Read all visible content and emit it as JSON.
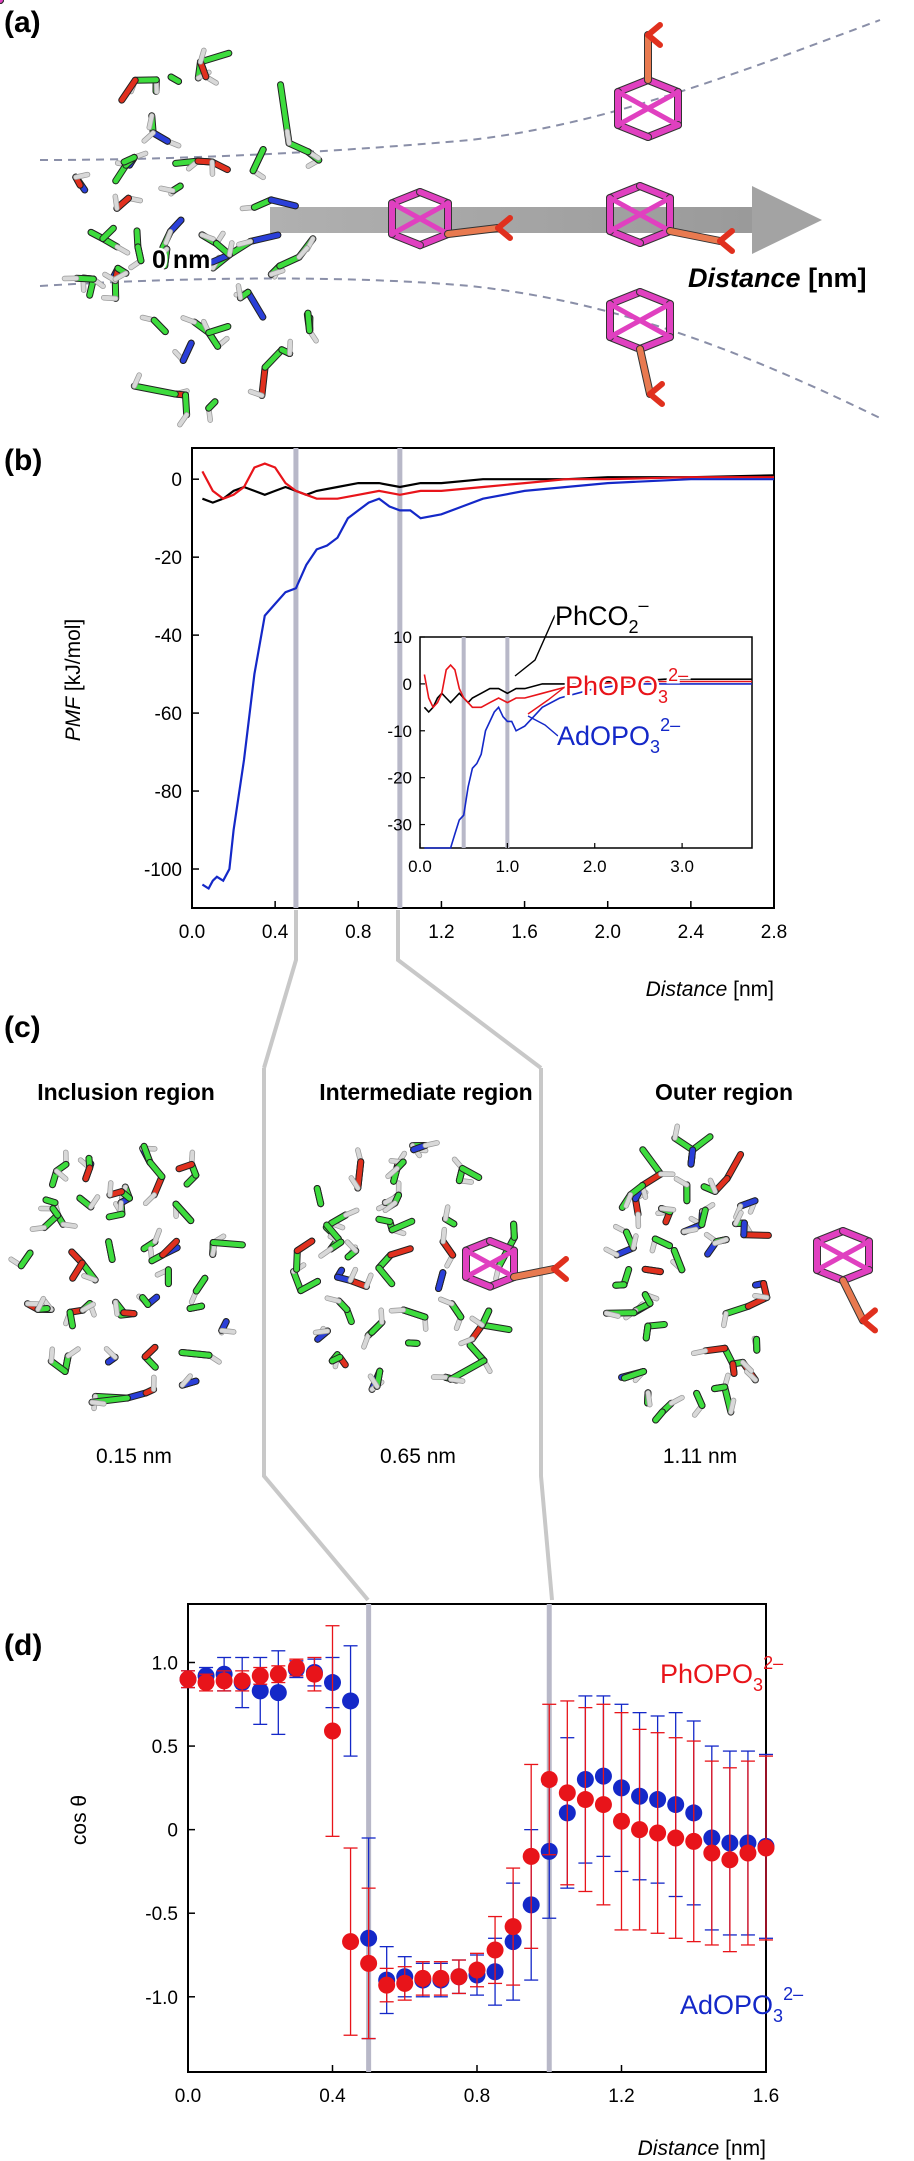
{
  "panels": {
    "a": "(a)",
    "b": "(b)",
    "c": "(c)",
    "d": "(d)"
  },
  "panel_a": {
    "origin_label": "0 nm",
    "axis_label_italic": "Distance",
    "axis_label_unit": " [nm]"
  },
  "panel_c": {
    "regions": [
      {
        "title": "Inclusion region",
        "distance": "0.15 nm"
      },
      {
        "title": "Intermediate region",
        "distance": "0.65 nm"
      },
      {
        "title": "Outer region",
        "distance": "1.11 nm"
      }
    ]
  },
  "colors": {
    "phco2": "#000000",
    "phopo3": "#e8141a",
    "adopo3": "#1428c8",
    "marker_line": "#b8b8c8",
    "carbon": "#3ddc3d",
    "oxygen": "#e0301e",
    "nitrogen": "#2a3fd8",
    "hydrogen": "#d8d8d8",
    "guest": "#e040c0",
    "phosphate": "#e87a50"
  },
  "chart_data": [
    {
      "id": "b-main",
      "type": "line",
      "ylabel_italic": "PMF",
      "ylabel_unit": " [kJ/mol]",
      "xlabel_italic": "Distance",
      "xlabel_unit": " [nm]",
      "xlim": [
        0,
        2.8
      ],
      "ylim": [
        -110,
        8
      ],
      "xticks": [
        "0.0",
        "0.4",
        "0.8",
        "1.2",
        "1.6",
        "2.0",
        "2.4",
        "2.8"
      ],
      "yticks": [
        "0",
        "-20",
        "-40",
        "-60",
        "-80",
        "-100"
      ],
      "markers_x": [
        0.5,
        1.0
      ],
      "series": [
        {
          "key": "phco2",
          "x": [
            0.05,
            0.1,
            0.15,
            0.2,
            0.25,
            0.3,
            0.35,
            0.4,
            0.45,
            0.5,
            0.55,
            0.6,
            0.7,
            0.8,
            0.9,
            1.0,
            1.1,
            1.2,
            1.4,
            1.6,
            1.8,
            2.0,
            2.4,
            2.8
          ],
          "y": [
            -5,
            -6,
            -5,
            -3,
            -2,
            -3,
            -4,
            -3,
            -2,
            -3,
            -4,
            -3,
            -2,
            -1,
            -1,
            -2,
            -1,
            -1,
            0,
            0,
            0,
            0.5,
            0.5,
            1
          ]
        },
        {
          "key": "phopo3",
          "x": [
            0.05,
            0.1,
            0.15,
            0.2,
            0.25,
            0.3,
            0.35,
            0.4,
            0.45,
            0.5,
            0.55,
            0.6,
            0.7,
            0.8,
            0.9,
            1.0,
            1.1,
            1.2,
            1.4,
            1.6,
            1.8,
            2.0,
            2.4,
            2.8
          ],
          "y": [
            2,
            -3,
            -5,
            -4,
            -2,
            3,
            4,
            3,
            -1,
            -3,
            -4,
            -5,
            -5,
            -4,
            -3,
            -4,
            -3,
            -3,
            -2,
            -1,
            0,
            0,
            0.5,
            0.5
          ]
        },
        {
          "key": "adopo3",
          "x": [
            0.05,
            0.08,
            0.1,
            0.12,
            0.15,
            0.18,
            0.2,
            0.25,
            0.3,
            0.35,
            0.4,
            0.45,
            0.5,
            0.55,
            0.6,
            0.65,
            0.7,
            0.75,
            0.8,
            0.85,
            0.9,
            0.95,
            1.0,
            1.05,
            1.1,
            1.2,
            1.3,
            1.4,
            1.6,
            1.8,
            2.0,
            2.4,
            2.8
          ],
          "y": [
            -104,
            -105,
            -103,
            -102,
            -103,
            -100,
            -90,
            -72,
            -50,
            -35,
            -32,
            -29,
            -28,
            -22,
            -18,
            -17,
            -15,
            -10,
            -8,
            -6,
            -5,
            -7,
            -8,
            -8,
            -10,
            -9,
            -7,
            -5,
            -3,
            -2,
            -1,
            0,
            0
          ]
        }
      ],
      "inset": {
        "xlim": [
          0,
          3.8
        ],
        "ylim": [
          -35,
          10
        ],
        "xticks": [
          "0.0",
          "1.0",
          "2.0",
          "3.0"
        ],
        "yticks": [
          "10",
          "0",
          "-10",
          "-20",
          "-30"
        ],
        "markers_x": [
          0.5,
          1.0
        ]
      },
      "legend": [
        {
          "key": "phco2",
          "base": "PhCO",
          "sub": "2",
          "sup": "–"
        },
        {
          "key": "phopo3",
          "base": "PhOPO",
          "sub": "3",
          "sup": "2–"
        },
        {
          "key": "adopo3",
          "base": "AdOPO",
          "sub": "3",
          "sup": "2–"
        }
      ]
    },
    {
      "id": "d",
      "type": "scatter",
      "ylabel": "cos θ",
      "xlabel_italic": "Distance",
      "xlabel_unit": " [nm]",
      "xlim": [
        0,
        1.6
      ],
      "ylim": [
        -1.45,
        1.35
      ],
      "xticks": [
        "0.0",
        "0.4",
        "0.8",
        "1.2",
        "1.6"
      ],
      "yticks": [
        "1.0",
        "0.5",
        "0",
        "-0.5",
        "-1.0"
      ],
      "markers_x": [
        0.5,
        1.0
      ],
      "series": [
        {
          "key": "adopo3",
          "label_base": "AdOPO",
          "label_sub": "3",
          "label_sup": "2–",
          "x": [
            0.0,
            0.05,
            0.1,
            0.15,
            0.2,
            0.25,
            0.3,
            0.35,
            0.4,
            0.45,
            0.5,
            0.55,
            0.6,
            0.65,
            0.7,
            0.75,
            0.8,
            0.85,
            0.9,
            0.95,
            1.0,
            1.05,
            1.1,
            1.15,
            1.2,
            1.25,
            1.3,
            1.35,
            1.4,
            1.45,
            1.5,
            1.55,
            1.6
          ],
          "y": [
            0.9,
            0.92,
            0.93,
            0.88,
            0.83,
            0.82,
            0.96,
            0.94,
            0.88,
            0.77,
            -0.65,
            -0.9,
            -0.88,
            -0.9,
            -0.9,
            -0.88,
            -0.87,
            -0.85,
            -0.67,
            -0.45,
            -0.13,
            0.1,
            0.3,
            0.32,
            0.25,
            0.2,
            0.18,
            0.15,
            0.1,
            -0.05,
            -0.08,
            -0.08,
            -0.1
          ],
          "err": [
            0.05,
            0.05,
            0.1,
            0.15,
            0.2,
            0.25,
            0.05,
            0.08,
            0.15,
            0.33,
            0.6,
            0.2,
            0.12,
            0.1,
            0.1,
            0.1,
            0.12,
            0.2,
            0.35,
            0.45,
            0.4,
            0.45,
            0.5,
            0.48,
            0.5,
            0.5,
            0.5,
            0.55,
            0.55,
            0.55,
            0.55,
            0.55,
            0.55
          ]
        },
        {
          "key": "phopo3",
          "label_base": "PhOPO",
          "label_sub": "3",
          "label_sup": "2–",
          "x": [
            0.0,
            0.05,
            0.1,
            0.15,
            0.2,
            0.25,
            0.3,
            0.35,
            0.4,
            0.45,
            0.5,
            0.55,
            0.6,
            0.65,
            0.7,
            0.75,
            0.8,
            0.85,
            0.9,
            0.95,
            1.0,
            1.05,
            1.1,
            1.15,
            1.2,
            1.25,
            1.3,
            1.35,
            1.4,
            1.45,
            1.5,
            1.55,
            1.6
          ],
          "y": [
            0.9,
            0.88,
            0.89,
            0.89,
            0.92,
            0.93,
            0.97,
            0.93,
            0.59,
            -0.67,
            -0.8,
            -0.93,
            -0.92,
            -0.89,
            -0.89,
            -0.88,
            -0.84,
            -0.72,
            -0.58,
            -0.16,
            0.3,
            0.22,
            0.18,
            0.15,
            0.05,
            0.0,
            -0.02,
            -0.05,
            -0.07,
            -0.14,
            -0.18,
            -0.14,
            -0.11
          ],
          "err": [
            0.05,
            0.05,
            0.06,
            0.06,
            0.05,
            0.05,
            0.05,
            0.1,
            0.63,
            0.56,
            0.45,
            0.1,
            0.1,
            0.1,
            0.1,
            0.1,
            0.1,
            0.2,
            0.35,
            0.55,
            0.45,
            0.55,
            0.55,
            0.6,
            0.65,
            0.6,
            0.6,
            0.6,
            0.6,
            0.55,
            0.55,
            0.55,
            0.55
          ]
        }
      ]
    }
  ]
}
